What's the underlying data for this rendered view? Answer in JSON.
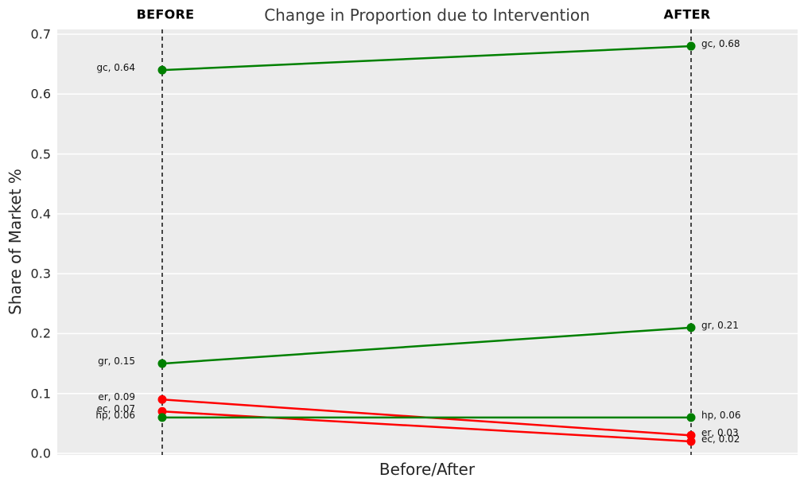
{
  "chart": {
    "title": "Change in Proportion due to Intervention",
    "column_headers": {
      "before": "BEFORE",
      "after": "AFTER"
    },
    "xlabel": "Before/After",
    "ylabel": "Share of Market %",
    "ytick_labels": [
      "0.0",
      "0.1",
      "0.2",
      "0.3",
      "0.4",
      "0.5",
      "0.6",
      "0.7"
    ]
  },
  "chart_data": {
    "type": "line",
    "subtype": "slopegraph",
    "title": "Change in Proportion due to Intervention",
    "xlabel": "Before/After",
    "ylabel": "Share of Market %",
    "categories": [
      "BEFORE",
      "AFTER"
    ],
    "series": [
      {
        "name": "gc",
        "values": [
          0.64,
          0.68
        ],
        "color": "#008000",
        "labels": [
          "gc, 0.64",
          "gc, 0.68"
        ]
      },
      {
        "name": "gr",
        "values": [
          0.15,
          0.21
        ],
        "color": "#008000",
        "labels": [
          "gr, 0.15",
          "gr, 0.21"
        ]
      },
      {
        "name": "er",
        "values": [
          0.09,
          0.03
        ],
        "color": "#ff0000",
        "labels": [
          "er, 0.09",
          "er, 0.03"
        ]
      },
      {
        "name": "ec",
        "values": [
          0.07,
          0.02
        ],
        "color": "#ff0000",
        "labels": [
          "ec, 0.07",
          "ec, 0.02"
        ]
      },
      {
        "name": "hp",
        "values": [
          0.06,
          0.06
        ],
        "color": "#008000",
        "labels": [
          "hp, 0.06",
          "hp, 0.06"
        ]
      }
    ],
    "ylim": [
      0.0,
      0.7
    ],
    "yticks": [
      0.0,
      0.1,
      0.2,
      0.3,
      0.4,
      0.5,
      0.6,
      0.7
    ],
    "grid": true,
    "legend": false,
    "colors": {
      "increase": "#008000",
      "decrease": "#ff0000",
      "plot_background": "#ececec",
      "gridline": "#ffffff",
      "guide_line": "#000000"
    }
  }
}
